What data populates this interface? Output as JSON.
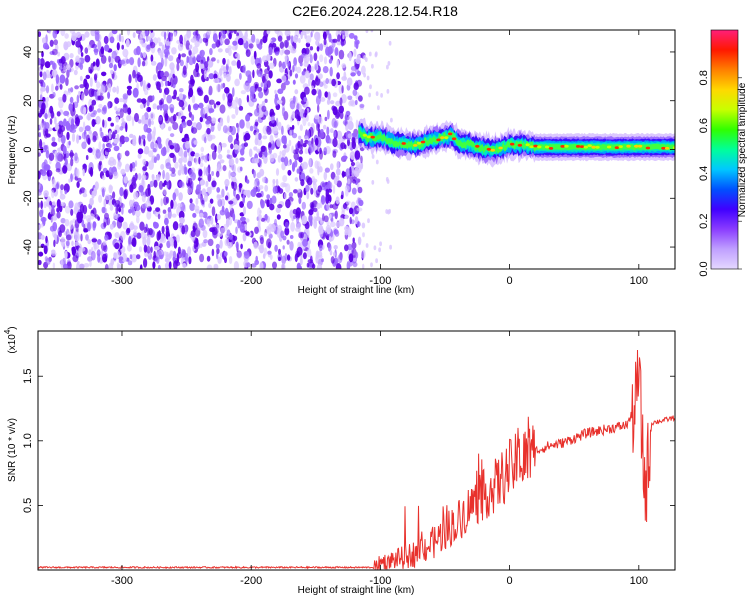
{
  "title": "C2E6.2024.228.12.54.R18",
  "colors": {
    "line": "#e8312c",
    "speckle_dark": "#5b00e6",
    "speckle_light": "#d8c4ff",
    "colorbar": [
      "#e4d8ff",
      "#c0a0ff",
      "#8a3cff",
      "#4000ff",
      "#0050ff",
      "#00c8ff",
      "#00ff9a",
      "#30ff00",
      "#c8ff00",
      "#ffd800",
      "#ff8000",
      "#ff1800",
      "#ff1f7a"
    ]
  },
  "chart_data": [
    {
      "type": "heatmap",
      "name": "spectrogram",
      "xlabel": "Height of straight line (km)",
      "ylabel": "Frequency (Hz)",
      "xlim": [
        -365,
        128
      ],
      "ylim": [
        -49,
        49
      ],
      "xticks": [
        -300,
        -200,
        -100,
        0,
        100
      ],
      "yticks": [
        -40,
        -20,
        0,
        20,
        40
      ],
      "noise_region_x": [
        -365,
        -113
      ],
      "signal_start_x": -117,
      "signal_track": {
        "x": [
          -117,
          -110,
          -100,
          -90,
          -80,
          -70,
          -60,
          -50,
          -45,
          -40,
          -30,
          -20,
          -10,
          0,
          10,
          20,
          40,
          60,
          80,
          100,
          128
        ],
        "freq": [
          7,
          5,
          5,
          3,
          2,
          2,
          4,
          5,
          6,
          3,
          2,
          0,
          0,
          2,
          2,
          1,
          1,
          1,
          1,
          1,
          1
        ]
      },
      "colorbar": {
        "label": "Normalized spectral amplitude",
        "range": [
          0,
          1
        ],
        "ticks": [
          "0.0",
          "0.2",
          "0.4",
          "0.6",
          "0.8"
        ]
      }
    },
    {
      "type": "line",
      "name": "snr",
      "xlabel": "Height of straight line (km)",
      "ylabel": "SNR (10 * v/v)",
      "y_multiplier_label": "(x10",
      "y_multiplier_exp": "4",
      "y_multiplier_close": ")",
      "xlim": [
        -365,
        128
      ],
      "ylim": [
        0,
        1.85
      ],
      "xticks": [
        -300,
        -200,
        -100,
        0,
        100
      ],
      "yticks": [
        "0.5",
        "1.0",
        "1.5"
      ],
      "series": [
        {
          "x": [
            -365,
            -300,
            -200,
            -105,
            -100,
            -90,
            -80,
            -70,
            -60,
            -50,
            -40,
            -30,
            -20,
            -10,
            0,
            10,
            20,
            30,
            40,
            50,
            60,
            70,
            80,
            90,
            95,
            98,
            100,
            102,
            105,
            110,
            120,
            128
          ],
          "y": [
            0.02,
            0.02,
            0.02,
            0.02,
            0.06,
            0.08,
            0.1,
            0.15,
            0.2,
            0.3,
            0.38,
            0.5,
            0.58,
            0.66,
            0.78,
            0.86,
            0.92,
            0.96,
            0.98,
            1.02,
            1.06,
            1.08,
            1.1,
            1.12,
            1.2,
            1.3,
            1.55,
            1.1,
            0.6,
            1.14,
            1.16,
            1.18
          ]
        }
      ]
    }
  ]
}
